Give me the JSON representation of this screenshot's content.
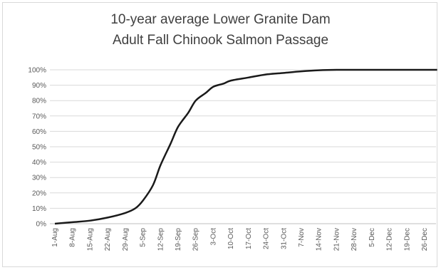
{
  "chart_data": {
    "type": "line",
    "title": "10-year average Lower Granite Dam",
    "subtitle": "Adult Fall Chinook Salmon Passage",
    "xlabel": "",
    "ylabel": "",
    "ylim": [
      0,
      100
    ],
    "grid": true,
    "legend": "none",
    "y_tick_labels": [
      "0%",
      "10%",
      "20%",
      "30%",
      "40%",
      "50%",
      "60%",
      "70%",
      "80%",
      "90%",
      "100%"
    ],
    "x_tick_labels": [
      "1-Aug",
      "8-Aug",
      "15-Aug",
      "22-Aug",
      "29-Aug",
      "5-Sep",
      "12-Sep",
      "19-Sep",
      "26-Sep",
      "3-Oct",
      "10-Oct",
      "17-Oct",
      "24-Oct",
      "31-Oct",
      "7-Nov",
      "14-Nov",
      "21-Nov",
      "28-Nov",
      "5-Dec",
      "12-Dec",
      "19-Dec",
      "26-Dec"
    ],
    "series": [
      {
        "x": [
          "1-Aug",
          "8-Aug",
          "15-Aug",
          "22-Aug",
          "29-Aug",
          "2-Sep",
          "5-Sep",
          "9-Sep",
          "12-Sep",
          "16-Sep",
          "19-Sep",
          "23-Sep",
          "26-Sep",
          "30-Sep",
          "3-Oct",
          "7-Oct",
          "10-Oct",
          "17-Oct",
          "24-Oct",
          "31-Oct",
          "7-Nov",
          "14-Nov",
          "21-Nov",
          "28-Nov",
          "5-Dec",
          "12-Dec",
          "19-Dec",
          "26-Dec",
          "31-Dec"
        ],
        "values": [
          0,
          1,
          2,
          4,
          7,
          10,
          15,
          25,
          38,
          52,
          63,
          72,
          80,
          85,
          89,
          91,
          93,
          95,
          97,
          98,
          99,
          99.7,
          100,
          100,
          100,
          100,
          100,
          100,
          100
        ]
      }
    ],
    "colors": {
      "line": "#1a1a1a",
      "grid": "#d9d9d9",
      "text": "#595959",
      "title": "#404040"
    }
  }
}
